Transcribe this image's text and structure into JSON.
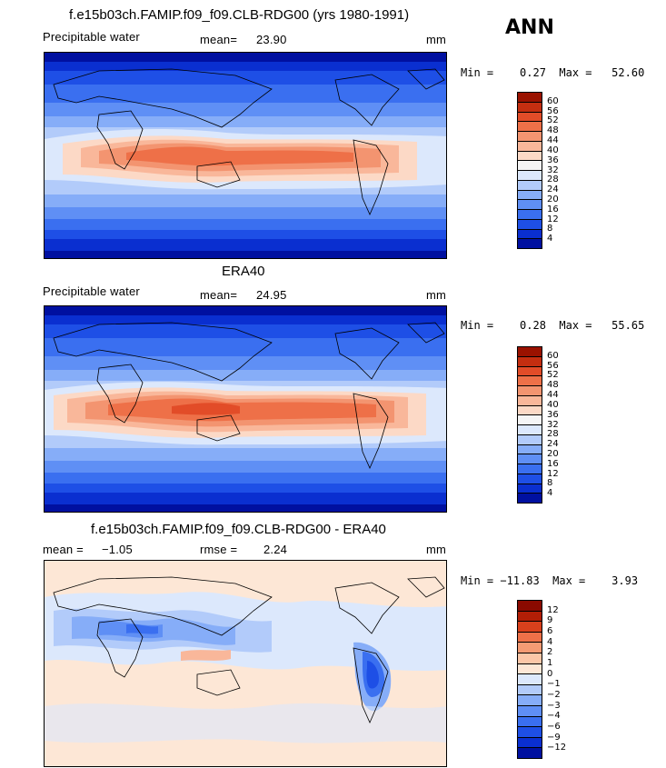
{
  "season": "ANN",
  "panels": [
    {
      "title": "f.e15b03ch.FAMIP.f09_f09.CLB-RDG00 (yrs 1980-1991)",
      "left_label": "Precipitable water",
      "stat_label": "mean=",
      "stat_value": "23.90",
      "units": "mm",
      "minmax": "Min =    0.27  Max =   52.60",
      "field": "model"
    },
    {
      "title": "ERA40",
      "left_label": "Precipitable water",
      "stat_label": "mean=",
      "stat_value": "24.95",
      "units": "mm",
      "minmax": "Min =    0.28  Max =   55.65",
      "field": "obs"
    },
    {
      "title": "f.e15b03ch.FAMIP.f09_f09.CLB-RDG00 - ERA40",
      "left_label": "mean =",
      "left_value": "−1.05",
      "stat_label": "rmse =",
      "stat_value": "2.24",
      "units": "mm",
      "minmax": "Min = −11.83  Max =    3.93",
      "field": "diff"
    }
  ],
  "colorbars": {
    "abs": {
      "labels": [
        "4",
        "8",
        "12",
        "16",
        "20",
        "24",
        "28",
        "32",
        "36",
        "40",
        "44",
        "48",
        "52",
        "56",
        "60"
      ],
      "colors": [
        "#0010a0",
        "#0a2fd0",
        "#1e4fe6",
        "#3a6ff0",
        "#5f8ff5",
        "#86adf8",
        "#b2cbfa",
        "#dce8fc",
        "#f5f5f5",
        "#fcd9c6",
        "#f9b79a",
        "#f39470",
        "#ee7048",
        "#e24c28",
        "#c42e10",
        "#9a1200"
      ]
    },
    "diff": {
      "labels": [
        "−12",
        "−9",
        "−6",
        "−4",
        "−3",
        "−2",
        "−1",
        "0",
        "1",
        "2",
        "4",
        "6",
        "9",
        "12"
      ],
      "colors": [
        "#0010a0",
        "#0a2fd0",
        "#1e4fe6",
        "#3a6ff0",
        "#5f8ff5",
        "#86adf8",
        "#b2cbfa",
        "#dce8fc",
        "#fde7d6",
        "#fcc7a8",
        "#f59b74",
        "#ee7048",
        "#d9401c",
        "#b21e06",
        "#8a0a00"
      ]
    }
  }
}
